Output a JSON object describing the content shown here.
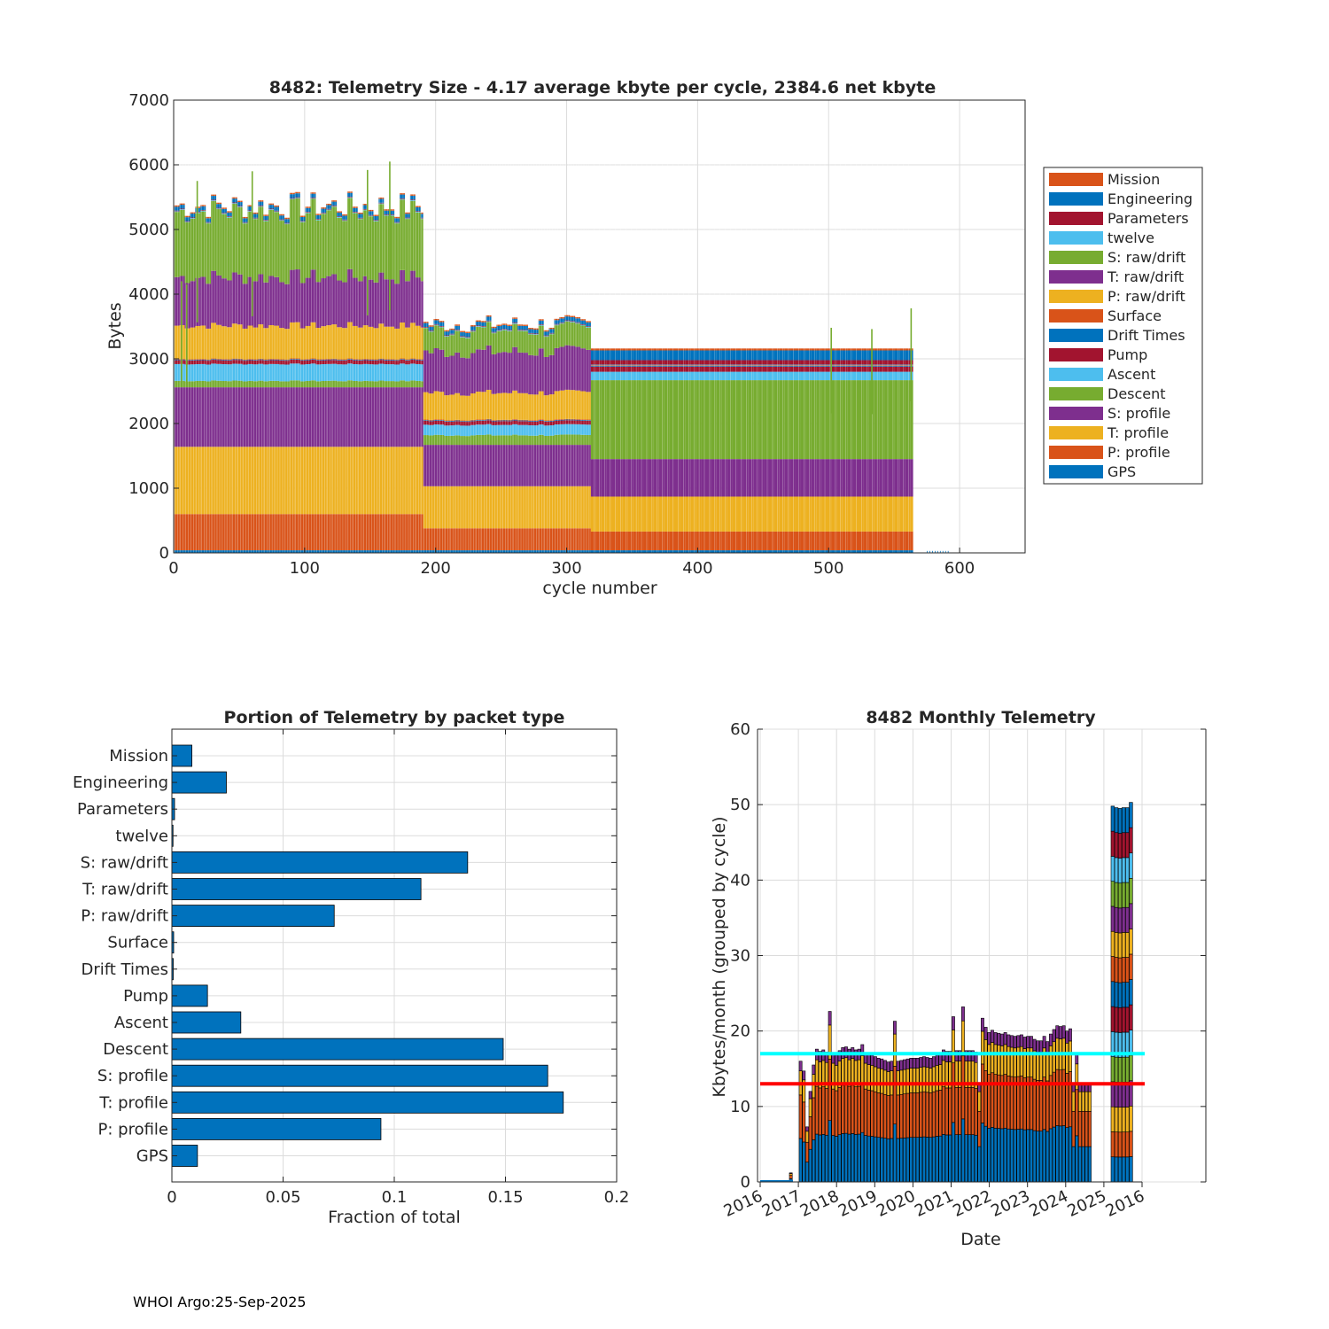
{
  "footer": "WHOI Argo:25-Sep-2025",
  "colors": {
    "orange": "#D95319",
    "blue": "#0072BD",
    "red": "#A2142F",
    "cyan": "#4DBEEE",
    "green": "#77AC30",
    "purple": "#7E2F8E",
    "yellow": "#EDB120",
    "mean_line": "#00FFFF",
    "median_line": "#FF0000",
    "grid": "#dcdcdc"
  },
  "chart_data": [
    {
      "type": "bar",
      "stacked": true,
      "title": "8482: Telemetry Size - 4.17 average kbyte per cycle, 2384.6 net kbyte",
      "xlabel": "cycle number",
      "ylabel": "Bytes",
      "xlim": [
        0,
        650
      ],
      "ylim": [
        0,
        7000
      ],
      "xticks": [
        "0",
        "100",
        "200",
        "300",
        "400",
        "500",
        "600"
      ],
      "yticks": [
        "0",
        "1000",
        "2000",
        "3000",
        "4000",
        "5000",
        "6000",
        "7000"
      ],
      "grid": true,
      "legend_position": "right",
      "legend": [
        "Mission",
        "Engineering",
        "Parameters",
        "twelve",
        "S: raw/drift",
        "T: raw/drift",
        "P: raw/drift",
        "Surface",
        "Drift Times",
        "Pump",
        "Ascent",
        "Descent",
        "S: profile",
        "T: profile",
        "P: profile",
        "GPS"
      ],
      "segment_order_bottom_up": [
        "GPS",
        "P: profile",
        "T: profile",
        "S: profile",
        "Descent",
        "Ascent",
        "Pump",
        "Drift Times",
        "Surface",
        "P: raw/drift",
        "T: raw/drift",
        "S: raw/drift",
        "twelve",
        "Parameters",
        "Engineering",
        "Mission"
      ],
      "phases": [
        {
          "cycles": [
            1,
            190
          ],
          "segments_bytes": {
            "GPS": 40,
            "P: profile": 560,
            "T: profile": 1040,
            "S: profile": 920,
            "Descent": 100,
            "Ascent": 260,
            "Pump": 60,
            "Drift Times": 10,
            "Surface": 10,
            "P: raw/drift": 520,
            "T: raw/drift": 760,
            "S: raw/drift": 1020,
            "twelve": 10,
            "Parameters": 10,
            "Engineering": 60,
            "Mission": 20
          }
        },
        {
          "cycles": [
            191,
            318
          ],
          "segments_bytes": {
            "GPS": 40,
            "P: profile": 340,
            "T: profile": 650,
            "S: profile": 640,
            "Descent": 150,
            "Ascent": 160,
            "Pump": 60,
            "Drift Times": 10,
            "Surface": 10,
            "P: raw/drift": 420,
            "T: raw/drift": 640,
            "S: raw/drift": 340,
            "twelve": 10,
            "Parameters": 10,
            "Engineering": 60,
            "Mission": 20
          }
        },
        {
          "cycles": [
            319,
            564
          ],
          "segments_bytes": {
            "GPS": 40,
            "P: profile": 290,
            "T: profile": 540,
            "S: profile": 580,
            "Descent": 1220,
            "Ascent": 130,
            "Pump": 80,
            "Drift Times": 10,
            "Surface": 10,
            "P: raw/drift": 0,
            "T: raw/drift": 0,
            "S: raw/drift": 0,
            "twelve": 10,
            "Parameters": 70,
            "Engineering": 150,
            "Mission": 30
          }
        }
      ],
      "outliers": [
        {
          "cycle": 6,
          "total": 4200
        },
        {
          "cycle": 10,
          "total": 4150
        },
        {
          "cycle": 18,
          "total": 5750
        },
        {
          "cycle": 60,
          "total": 5900
        },
        {
          "cycle": 148,
          "total": 5920
        },
        {
          "cycle": 165,
          "total": 6050
        },
        {
          "cycle": 502,
          "total": 3480
        },
        {
          "cycle": 533,
          "total": 3460
        },
        {
          "cycle": 563,
          "total": 3780
        }
      ],
      "late_cycles": {
        "cycles": [
          575,
          592
        ],
        "total": 30
      }
    },
    {
      "type": "bar",
      "orientation": "horizontal",
      "title": "Portion of Telemetry by packet type",
      "xlabel": "Fraction of total",
      "xlim": [
        0,
        0.2
      ],
      "xticks": [
        "0",
        "0.05",
        "0.1",
        "0.15",
        "0.2"
      ],
      "grid": true,
      "categories": [
        "Mission",
        "Engineering",
        "Parameters",
        "twelve",
        "S: raw/drift",
        "T: raw/drift",
        "P: raw/drift",
        "Surface",
        "Drift Times",
        "Pump",
        "Ascent",
        "Descent",
        "S: profile",
        "T: profile",
        "P: profile",
        "GPS"
      ],
      "values": [
        0.009,
        0.0245,
        0.0012,
        0.0005,
        0.133,
        0.112,
        0.073,
        0.0008,
        0.0006,
        0.016,
        0.031,
        0.149,
        0.169,
        0.176,
        0.094,
        0.0115
      ]
    },
    {
      "type": "bar",
      "stacked": true,
      "title": "8482 Monthly Telemetry",
      "xlabel": "Date",
      "ylabel": "Kbytes/month (grouped by cycle)",
      "ylim": [
        0,
        60
      ],
      "yticks": [
        "0",
        "10",
        "20",
        "30",
        "40",
        "50",
        "60"
      ],
      "xticks": [
        "2016",
        "2017",
        "2018",
        "2019",
        "2020",
        "2021",
        "2022",
        "2023",
        "2024",
        "2025",
        "2016"
      ],
      "grid": true,
      "mean_line": 17,
      "median_line": 13,
      "monthly_totals": [
        0,
        0,
        0,
        0,
        0,
        0,
        0,
        0,
        0,
        1.2,
        0,
        0,
        16,
        14.7,
        7.3,
        12,
        15.5,
        17.6,
        17.3,
        17.5,
        17.2,
        22.6,
        17.1,
        16.8,
        17.4,
        17.8,
        17.9,
        17.6,
        17.8,
        17.5,
        17.6,
        18.2,
        17.1,
        16.9,
        16.8,
        16.6,
        16.4,
        16.3,
        16.1,
        15.9,
        16,
        21.3,
        16,
        16.1,
        16.2,
        16.3,
        16.4,
        16.4,
        16.4,
        16.5,
        16.6,
        16.5,
        16.4,
        16.6,
        16.8,
        16.9,
        17.5,
        17.3,
        17.3,
        21.9,
        17.4,
        17.4,
        23.2,
        17.4,
        17.4,
        17.4,
        17.2,
        13,
        21.7,
        20.5,
        19.8,
        20.1,
        19.8,
        19.7,
        19.6,
        19.8,
        19.5,
        19.4,
        19.3,
        19.4,
        19.5,
        19.2,
        19.3,
        19.3,
        18.9,
        18.7,
        18.7,
        19.3,
        18.6,
        19.6,
        20.2,
        20.7,
        20.6,
        20.7,
        20,
        20.3,
        13,
        17,
        13,
        13,
        13,
        13,
        49.8,
        49.6,
        49.5,
        49.6,
        49.6,
        50.3
      ],
      "composition_kbytes": {
        "GPS": 3.3,
        "P: profile": 3.3,
        "T: profile": 3.3,
        "S: profile": 3.3,
        "Descent": 3.3,
        "Ascent": 3.3,
        "Pump": 3.3,
        "Drift Times": 3.3,
        "Surface": 3.3,
        "P: raw/drift": 3.3,
        "T: raw/drift": 3.3,
        "S: raw/drift": 3.3,
        "twelve": 3.3,
        "Parameters": 3.3,
        "Engineering": 3.3
      }
    }
  ]
}
